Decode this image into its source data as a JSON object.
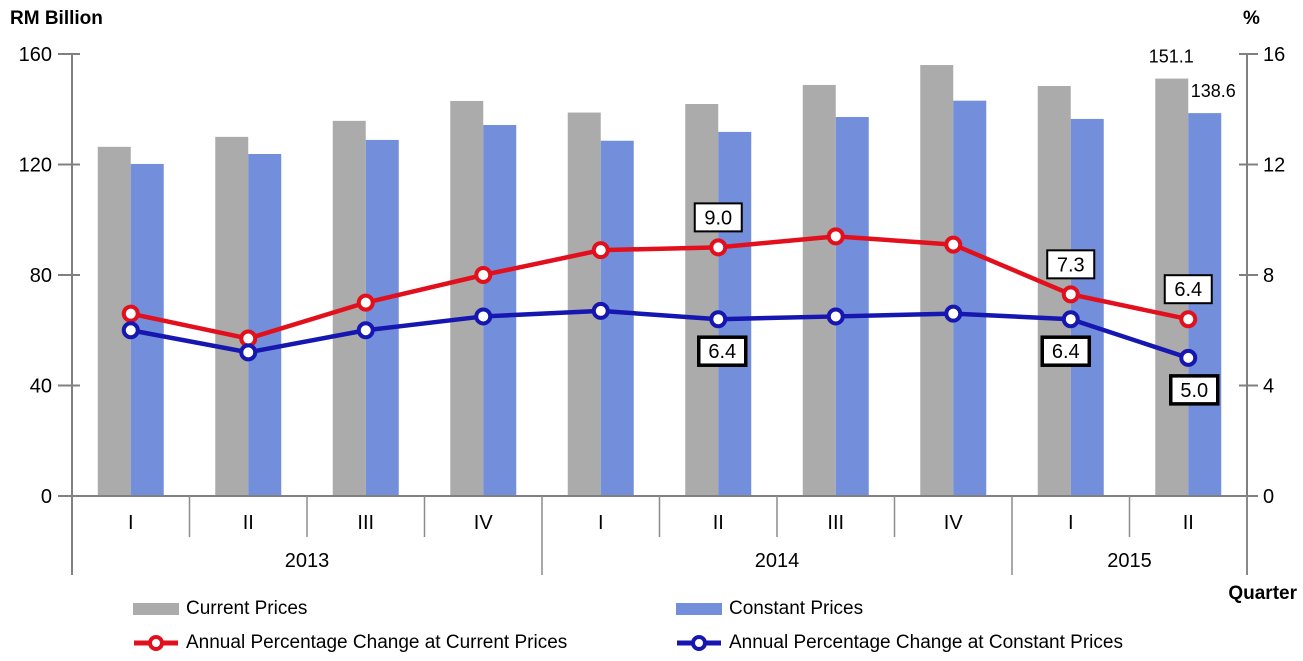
{
  "chart_data": {
    "type": "combo-bar-line",
    "left_axis": {
      "title": "RM Billion",
      "ticks": [
        0,
        40,
        80,
        120,
        160
      ],
      "max": 160
    },
    "right_axis": {
      "title": "%",
      "ticks": [
        0,
        4,
        8,
        12,
        16
      ],
      "max": 16
    },
    "x_axis": {
      "title": "Quarter"
    },
    "x_groups": [
      {
        "year": "2013",
        "quarters": [
          "I",
          "II",
          "III",
          "IV"
        ]
      },
      {
        "year": "2014",
        "quarters": [
          "I",
          "II",
          "III",
          "IV"
        ]
      },
      {
        "year": "2015",
        "quarters": [
          "I",
          "II"
        ]
      }
    ],
    "series": [
      {
        "name": "Current Prices",
        "type": "bar",
        "axis": "left",
        "color": "#ABABAB",
        "values": [
          126.4,
          130.0,
          135.8,
          143.0,
          138.8,
          141.9,
          148.8,
          156.0,
          148.4,
          151.1
        ],
        "value_labels": [
          {
            "index": 9,
            "text": "151.1",
            "dx": -17,
            "dy": -16
          }
        ]
      },
      {
        "name": "Constant Prices",
        "type": "bar",
        "axis": "left",
        "color": "#738FDC",
        "values": [
          120.2,
          123.8,
          128.9,
          134.3,
          128.6,
          131.8,
          137.2,
          143.1,
          136.5,
          138.6
        ],
        "value_labels": [
          {
            "index": 9,
            "text": "138.6",
            "dx": 25,
            "dy": -16
          }
        ]
      },
      {
        "name": "Annual Percentage Change at Current Prices",
        "type": "line",
        "axis": "right",
        "color": "#E2101C",
        "values": [
          6.6,
          5.7,
          7.0,
          8.0,
          8.9,
          9.0,
          9.4,
          9.1,
          7.3,
          6.4
        ],
        "point_labels": [
          {
            "index": 5,
            "text": "9.0",
            "side": "above",
            "border": "thin",
            "dx": 0
          },
          {
            "index": 8,
            "text": "7.3",
            "side": "above",
            "border": "thin",
            "dx": 0
          },
          {
            "index": 9,
            "text": "6.4",
            "side": "above",
            "border": "thin",
            "dx": 0
          }
        ]
      },
      {
        "name": "Annual Percentage Change at Constant Prices",
        "type": "line",
        "axis": "right",
        "color": "#1616B0",
        "values": [
          6.0,
          5.2,
          6.0,
          6.5,
          6.7,
          6.4,
          6.5,
          6.6,
          6.4,
          5.0
        ],
        "point_labels": [
          {
            "index": 5,
            "text": "6.4",
            "side": "below",
            "border": "thick",
            "dx": 4
          },
          {
            "index": 8,
            "text": "6.4",
            "side": "below",
            "border": "thick",
            "dx": -5
          },
          {
            "index": 9,
            "text": "5.0",
            "side": "below",
            "border": "thick",
            "dx": 6
          }
        ]
      }
    ]
  }
}
